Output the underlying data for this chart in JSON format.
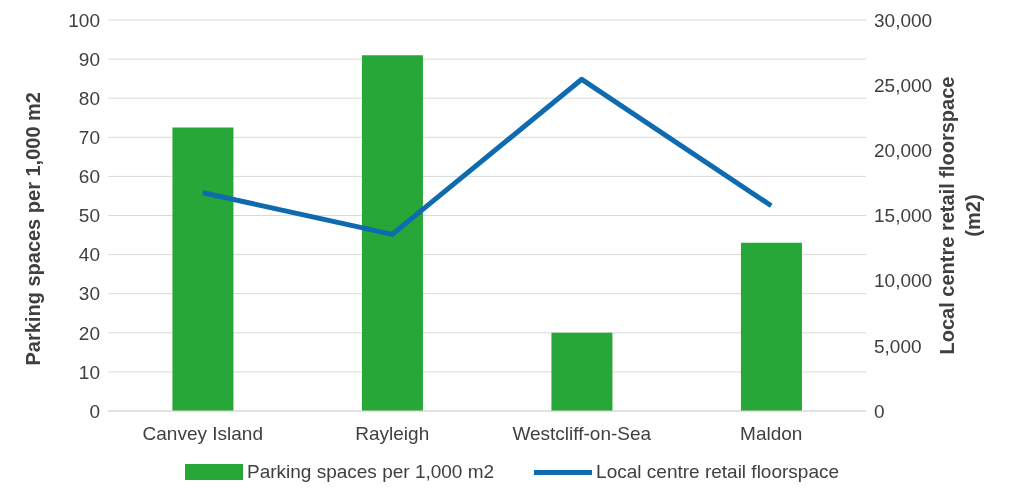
{
  "chart_data": {
    "type": "bar",
    "categories": [
      "Canvey Island",
      "Rayleigh",
      "Westcliff-on-Sea",
      "Maldon"
    ],
    "series": [
      {
        "name": "Parking spaces per 1,000 m2",
        "color": "#27a737",
        "values": [
          72.5,
          91,
          20,
          43
        ]
      },
      {
        "name": "Local centre retail floorspace",
        "type": "line",
        "axis": "y2",
        "color": "#0f6bb0",
        "values": [
          16750,
          13550,
          25450,
          15750
        ]
      }
    ],
    "ylabel": "Parking spaces per 1,000 m2",
    "y2label": "Local centre retail floorspace (m2)",
    "ylim": [
      0,
      100
    ],
    "yticks": [
      0,
      10,
      20,
      30,
      40,
      50,
      60,
      70,
      80,
      90,
      100
    ],
    "y2lim": [
      0,
      30000
    ],
    "y2ticks": [
      0,
      {
        "value": 5000,
        "label": "5,000"
      },
      {
        "value": 10000,
        "label": "10,000"
      },
      {
        "value": 15000,
        "label": "15,000"
      },
      {
        "value": 20000,
        "label": "20,000"
      },
      {
        "value": 25000,
        "label": "25,000"
      },
      {
        "value": 30000,
        "label": "30,000"
      }
    ],
    "grid": "y",
    "legend": "bottom",
    "marker": "none"
  }
}
